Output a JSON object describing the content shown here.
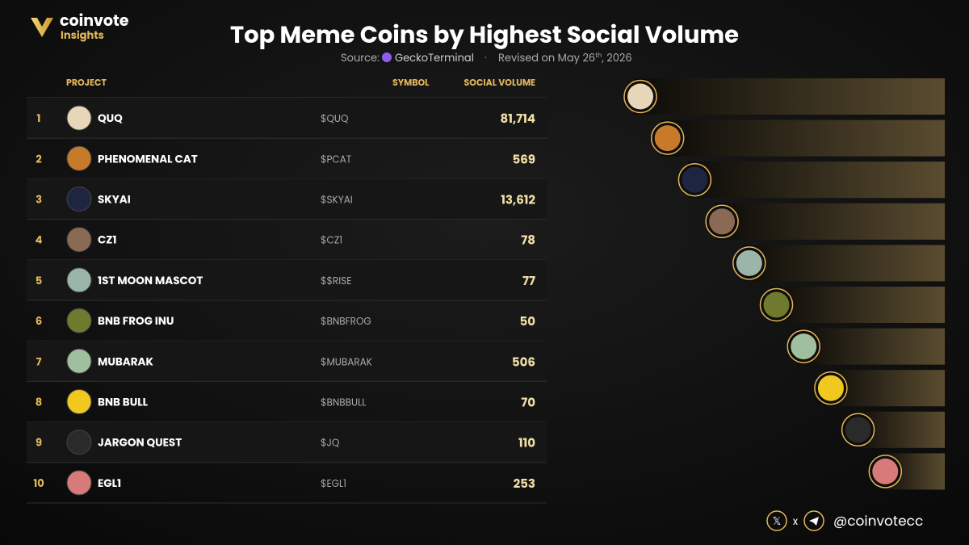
{
  "header": {
    "brand": "coinvote",
    "brand_sub": "Insights",
    "title": "Top Meme Coins by Highest Social Volume",
    "source_label": "Source:",
    "source_name": "GeckoTerminal",
    "separator": "·",
    "revised_prefix": "Revised on May 26",
    "revised_sup": "th",
    "revised_suffix": ", 2026"
  },
  "table": {
    "columns": [
      "PROJECT",
      "SYMBOL",
      "SOCIAL VOLUME"
    ],
    "rows": [
      {
        "rank": 1,
        "name": "QUQ",
        "symbol": "$QUQ",
        "volume": "81,714"
      },
      {
        "rank": 2,
        "name": "PHENOMENAL CAT",
        "symbol": "$PCAT",
        "volume": "569"
      },
      {
        "rank": 3,
        "name": "SKYAI",
        "symbol": "$SKYAI",
        "volume": "13,612"
      },
      {
        "rank": 4,
        "name": "CZ1",
        "symbol": "$CZ1",
        "volume": "78"
      },
      {
        "rank": 5,
        "name": "1ST MOON MASCOT",
        "symbol": "$$RISE",
        "volume": "77"
      },
      {
        "rank": 6,
        "name": "BNB FROG INU",
        "symbol": "$BNBFROG",
        "volume": "50"
      },
      {
        "rank": 7,
        "name": "MUBARAK",
        "symbol": "$MUBARAK",
        "volume": "506"
      },
      {
        "rank": 8,
        "name": "BNB BULL",
        "symbol": "$BNBBULL",
        "volume": "70"
      },
      {
        "rank": 9,
        "name": "JARGON QUEST",
        "symbol": "$JQ",
        "volume": "110"
      },
      {
        "rank": 10,
        "name": "EGL1",
        "symbol": "$EGL1",
        "volume": "253"
      }
    ]
  },
  "footer": {
    "x_separator": "x",
    "handle": "@coinvotecc"
  }
}
